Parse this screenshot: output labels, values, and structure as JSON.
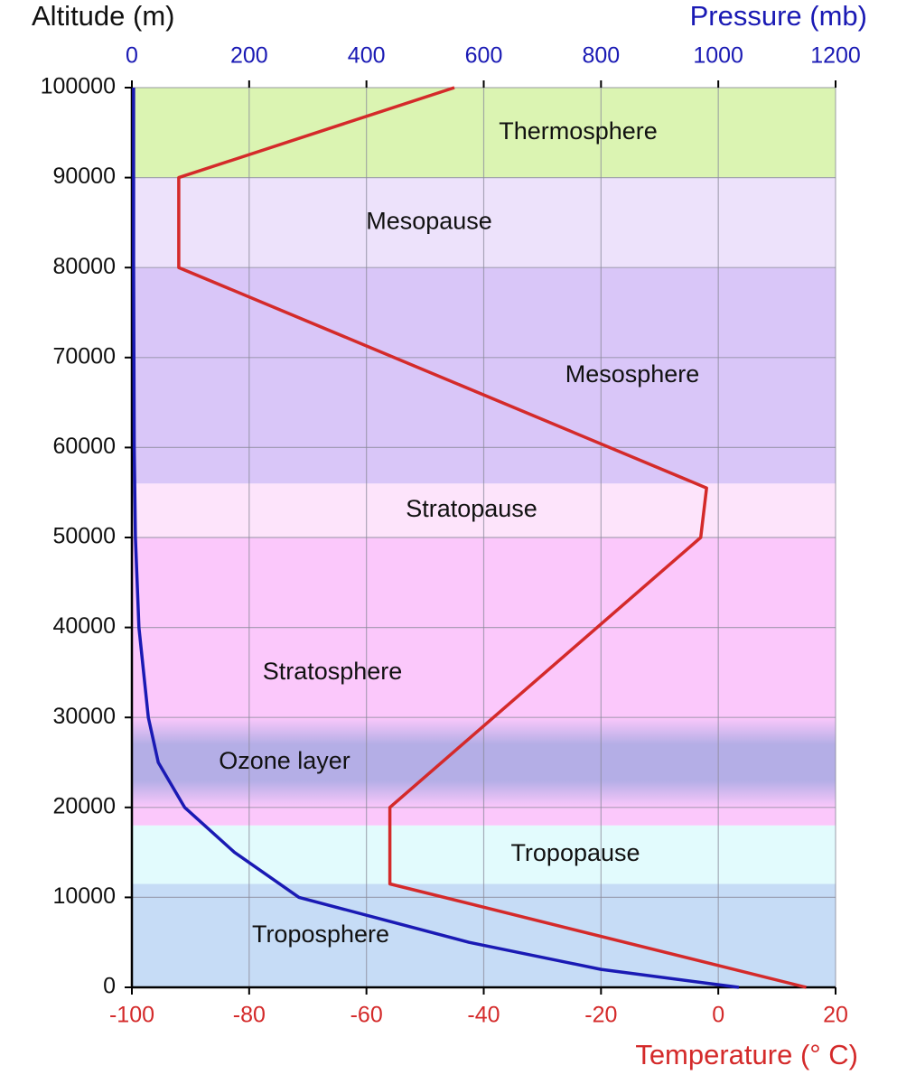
{
  "chart_data": {
    "type": "line",
    "y_label": "Altitude (m)",
    "x2_label": "Pressure (mb)",
    "x_label": "Temperature (° C)",
    "ylim": [
      0,
      100000
    ],
    "yticks": [
      0,
      10000,
      20000,
      30000,
      40000,
      50000,
      60000,
      70000,
      80000,
      90000,
      100000
    ],
    "xlim": [
      -100,
      20
    ],
    "xticks": [
      -100,
      -80,
      -60,
      -40,
      -20,
      0,
      20
    ],
    "x2lim": [
      0,
      1200
    ],
    "x2ticks": [
      0,
      200,
      400,
      600,
      800,
      1000,
      1200
    ],
    "grid": true,
    "layers": [
      {
        "name": "Troposphere",
        "from": 0,
        "to": 11500,
        "color": "#c6dcf6"
      },
      {
        "name": "Tropopause",
        "from": 11500,
        "to": 18000,
        "color": "#e2fbfd"
      },
      {
        "name": "Stratosphere",
        "from": 18000,
        "to": 50000,
        "color": "#fbc8fb"
      },
      {
        "name": "Ozone layer",
        "from": 20000,
        "to": 30000,
        "color": "#b4aee6"
      },
      {
        "name": "Stratopause",
        "from": 50000,
        "to": 56000,
        "color": "#fde4fb"
      },
      {
        "name": "Mesosphere",
        "from": 56000,
        "to": 80000,
        "color": "#d9c6f8"
      },
      {
        "name": "Mesopause",
        "from": 80000,
        "to": 90000,
        "color": "#ede2fb"
      },
      {
        "name": "Thermosphere",
        "from": 90000,
        "to": 100000,
        "color": "#dbf4b2"
      }
    ],
    "series": [
      {
        "axis": "x",
        "color": "#d42a2a",
        "x": [
          15,
          -56,
          -56,
          -3,
          -2,
          -92,
          -92,
          -45
        ],
        "y": [
          0,
          11500,
          20000,
          50000,
          55500,
          80000,
          90000,
          100000
        ]
      },
      {
        "axis": "x2",
        "color": "#1a1ab4",
        "x": [
          1035,
          800,
          575,
          285,
          175,
          90,
          45,
          28,
          12,
          6,
          4,
          3,
          3
        ],
        "y": [
          0,
          2000,
          5000,
          10000,
          15000,
          20000,
          25000,
          30000,
          40000,
          50000,
          60000,
          80000,
          100000
        ]
      }
    ]
  }
}
